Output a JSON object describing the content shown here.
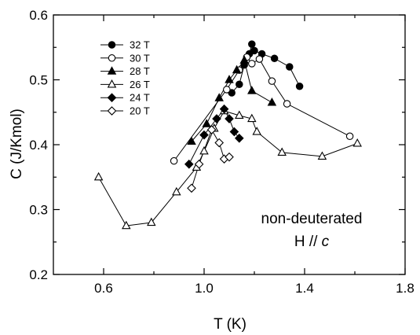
{
  "chart_data": {
    "type": "scatter",
    "title": "",
    "xlabel": "T (K)",
    "ylabel": "C (J/Kmol)",
    "xlim": [
      0.4,
      1.8
    ],
    "ylim": [
      0.2,
      0.6
    ],
    "xticks": [
      "0.6",
      "1.0",
      "1.4",
      "1.8"
    ],
    "yticks": [
      "0.2",
      "0.3",
      "0.4",
      "0.5",
      "0.6"
    ],
    "grid": false,
    "legend_position": "top-left",
    "annotation": [
      "non-deuterated",
      "H // ",
      "c"
    ],
    "series": [
      {
        "name": "32 T",
        "marker": "circle",
        "filled": true,
        "x": [
          1.11,
          1.14,
          1.16,
          1.18,
          1.19,
          1.2,
          1.23,
          1.28,
          1.34,
          1.38
        ],
        "y": [
          0.48,
          0.493,
          0.523,
          0.54,
          0.555,
          0.545,
          0.54,
          0.533,
          0.52,
          0.49
        ]
      },
      {
        "name": "30 T",
        "marker": "circle",
        "filled": false,
        "x": [
          0.88,
          1.09,
          1.14,
          1.17,
          1.19,
          1.22,
          1.27,
          1.33,
          1.58
        ],
        "y": [
          0.375,
          0.485,
          0.515,
          0.535,
          0.525,
          0.532,
          0.498,
          0.463,
          0.413
        ]
      },
      {
        "name": "28 T",
        "marker": "triangle",
        "filled": true,
        "x": [
          0.95,
          1.01,
          1.06,
          1.1,
          1.13,
          1.16,
          1.19,
          1.27
        ],
        "y": [
          0.405,
          0.432,
          0.472,
          0.5,
          0.515,
          0.53,
          0.483,
          0.465
        ]
      },
      {
        "name": "26 T",
        "marker": "triangle",
        "filled": false,
        "x": [
          0.58,
          0.69,
          0.79,
          0.89,
          0.97,
          1.0,
          1.04,
          1.08,
          1.14,
          1.19,
          1.21,
          1.31,
          1.47,
          1.61
        ],
        "y": [
          0.35,
          0.275,
          0.28,
          0.327,
          0.365,
          0.39,
          0.425,
          0.452,
          0.445,
          0.44,
          0.42,
          0.388,
          0.382,
          0.402
        ]
      },
      {
        "name": "24 T",
        "marker": "diamond",
        "filled": true,
        "x": [
          0.94,
          1.0,
          1.05,
          1.08,
          1.1,
          1.12,
          1.14
        ],
        "y": [
          0.37,
          0.415,
          0.44,
          0.455,
          0.44,
          0.42,
          0.41
        ]
      },
      {
        "name": "20 T",
        "marker": "diamond",
        "filled": false,
        "x": [
          0.95,
          0.98,
          1.03,
          1.06,
          1.08,
          1.1
        ],
        "y": [
          0.333,
          0.37,
          0.423,
          0.403,
          0.378,
          0.381
        ]
      }
    ]
  }
}
